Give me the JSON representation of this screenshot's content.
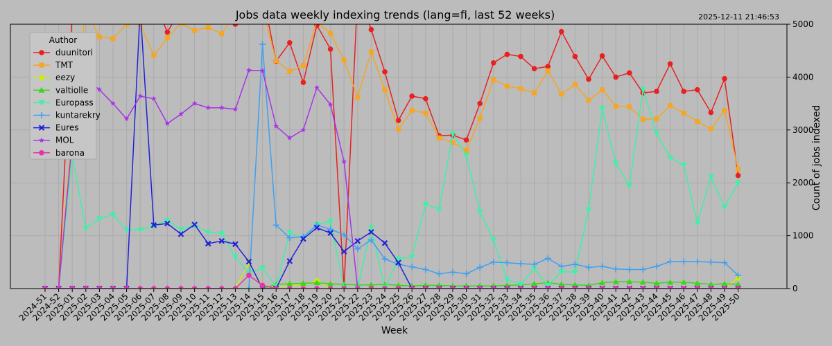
{
  "timestamp": "2025-12-11 21:46:53",
  "chart_data": {
    "type": "line",
    "title": "Jobs data weekly indexing trends (lang=fi, last 52 weeks)",
    "xlabel": "Week",
    "ylabel": "Count of jobs indexed",
    "ylim": [
      0,
      5000
    ],
    "yticks": [
      0,
      1000,
      2000,
      3000,
      4000,
      5000
    ],
    "y_axis_side": "right",
    "grid": true,
    "legend_title": "Author",
    "legend_position": "top-left",
    "categories": [
      "2024-51",
      "2024-52",
      "2025-01",
      "2025-02",
      "2025-03",
      "2025-04",
      "2025-05",
      "2025-06",
      "2025-07",
      "2025-08",
      "2025-09",
      "2025-10",
      "2025-11",
      "2025-12",
      "2025-13",
      "2025-14",
      "2025-15",
      "2025-16",
      "2025-17",
      "2025-18",
      "2025-19",
      "2025-20",
      "2025-21",
      "2025-22",
      "2025-23",
      "2025-24",
      "2025-25",
      "2025-26",
      "2025-27",
      "2025-28",
      "2025-29",
      "2025-30",
      "2025-31",
      "2025-32",
      "2025-33",
      "2025-34",
      "2025-35",
      "2025-36",
      "2025-37",
      "2025-38",
      "2025-39",
      "2025-40",
      "2025-41",
      "2025-42",
      "2025-43",
      "2025-44",
      "2025-45",
      "2025-46",
      "2025-47",
      "2025-48",
      "2025-49",
      "2025-50"
    ],
    "series": [
      {
        "name": "duunitori",
        "color": "#e82020",
        "marker": "circle",
        "values": [
          0,
          0,
          5200,
          5400,
          5600,
          5500,
          5500,
          5450,
          5450,
          4850,
          5300,
          5200,
          5100,
          5100,
          5000,
          5300,
          5600,
          4300,
          4650,
          3900,
          4980,
          4530,
          0,
          5600,
          4900,
          4100,
          3180,
          3640,
          3590,
          2890,
          2900,
          2810,
          3500,
          4270,
          4430,
          4390,
          4160,
          4200,
          4860,
          4390,
          3960,
          4400,
          4000,
          4080,
          3700,
          3730,
          4250,
          3730,
          3760,
          3330,
          3970,
          2140
        ]
      },
      {
        "name": "TMT",
        "color": "#f5a623",
        "marker": "square",
        "values": [
          0,
          0,
          3000,
          5300,
          4760,
          4730,
          5000,
          5000,
          4410,
          4740,
          5020,
          4880,
          4940,
          4820,
          5200,
          5200,
          5300,
          4310,
          4110,
          4220,
          5050,
          4830,
          4320,
          3620,
          4480,
          3760,
          3010,
          3370,
          3320,
          2850,
          2760,
          2610,
          3220,
          3950,
          3830,
          3780,
          3700,
          4120,
          3680,
          3860,
          3560,
          3760,
          3450,
          3440,
          3200,
          3210,
          3460,
          3320,
          3160,
          3020,
          3370,
          2260
        ]
      },
      {
        "name": "eezy",
        "color": "#c8f000",
        "marker": "diamond",
        "values": [
          0,
          0,
          0,
          0,
          0,
          0,
          0,
          0,
          0,
          0,
          0,
          0,
          0,
          0,
          0,
          480,
          40,
          30,
          60,
          70,
          150,
          0,
          0,
          0,
          0,
          0,
          0,
          0,
          0,
          0,
          0,
          0,
          0,
          0,
          0,
          0,
          0,
          0,
          0,
          0,
          0,
          0,
          0,
          0,
          0,
          0,
          0,
          0,
          0,
          0,
          0,
          200
        ]
      },
      {
        "name": "valtiolle",
        "color": "#3ad61a",
        "marker": "triangle-up",
        "values": [
          0,
          0,
          0,
          0,
          0,
          0,
          0,
          0,
          0,
          0,
          0,
          0,
          0,
          0,
          0,
          0,
          0,
          80,
          90,
          100,
          110,
          90,
          80,
          70,
          70,
          80,
          60,
          50,
          60,
          60,
          50,
          50,
          50,
          50,
          60,
          70,
          90,
          110,
          80,
          70,
          60,
          110,
          130,
          130,
          120,
          100,
          120,
          120,
          100,
          80,
          90,
          80
        ]
      },
      {
        "name": "Europass",
        "color": "#3ff0a8",
        "marker": "triangle-down",
        "values": [
          0,
          0,
          2500,
          1140,
          1320,
          1400,
          1110,
          1110,
          1180,
          1290,
          1120,
          1200,
          1060,
          1040,
          600,
          290,
          390,
          40,
          1060,
          960,
          1210,
          1270,
          0,
          0,
          1150,
          0,
          560,
          600,
          1590,
          1500,
          2930,
          2520,
          1450,
          920,
          170,
          80,
          380,
          60,
          320,
          310,
          1490,
          3410,
          2370,
          1940,
          3770,
          2940,
          2470,
          2340,
          1240,
          2110,
          1540,
          2000
        ]
      },
      {
        "name": "kuntarekry",
        "color": "#3fa0f0",
        "marker": "plus",
        "values": [
          0,
          0,
          0,
          0,
          0,
          0,
          0,
          0,
          0,
          0,
          0,
          0,
          0,
          0,
          0,
          0,
          4620,
          1200,
          960,
          980,
          1200,
          1120,
          1020,
          750,
          920,
          560,
          460,
          410,
          360,
          280,
          310,
          280,
          400,
          500,
          490,
          470,
          460,
          570,
          420,
          460,
          400,
          420,
          370,
          360,
          360,
          420,
          510,
          510,
          510,
          500,
          490,
          250
        ]
      },
      {
        "name": "Eures",
        "color": "#2020d8",
        "marker": "x",
        "values": [
          0,
          0,
          0,
          0,
          0,
          0,
          0,
          5300,
          1200,
          1230,
          1030,
          1210,
          850,
          900,
          840,
          510,
          0,
          0,
          520,
          940,
          1150,
          1050,
          700,
          900,
          1070,
          860,
          490,
          0,
          0,
          0,
          0,
          0,
          0,
          0,
          0,
          0,
          0,
          0,
          0,
          0,
          0,
          0,
          0,
          0,
          0,
          0,
          0,
          0,
          0,
          0,
          0,
          0
        ]
      },
      {
        "name": "MOL",
        "color": "#a832e8",
        "marker": "star",
        "values": [
          0,
          0,
          2800,
          3980,
          3760,
          3500,
          3210,
          3640,
          3590,
          3120,
          3300,
          3500,
          3420,
          3420,
          3390,
          4130,
          4120,
          3070,
          2850,
          3000,
          3800,
          3480,
          2400,
          0,
          0,
          0,
          0,
          0,
          0,
          0,
          0,
          0,
          0,
          0,
          0,
          0,
          0,
          0,
          0,
          0,
          0,
          0,
          0,
          0,
          0,
          0,
          0,
          0,
          0,
          0,
          0,
          0
        ]
      },
      {
        "name": "barona",
        "color": "#e832a8",
        "marker": "circle",
        "values": [
          0,
          0,
          0,
          0,
          0,
          0,
          0,
          0,
          0,
          0,
          0,
          0,
          0,
          0,
          0,
          250,
          60,
          0,
          0,
          0,
          0,
          0,
          0,
          0,
          0,
          0,
          0,
          0,
          0,
          0,
          0,
          0,
          0,
          0,
          0,
          0,
          0,
          0,
          0,
          0,
          0,
          0,
          0,
          0,
          0,
          0,
          0,
          0,
          0,
          0,
          0,
          0
        ]
      }
    ]
  }
}
